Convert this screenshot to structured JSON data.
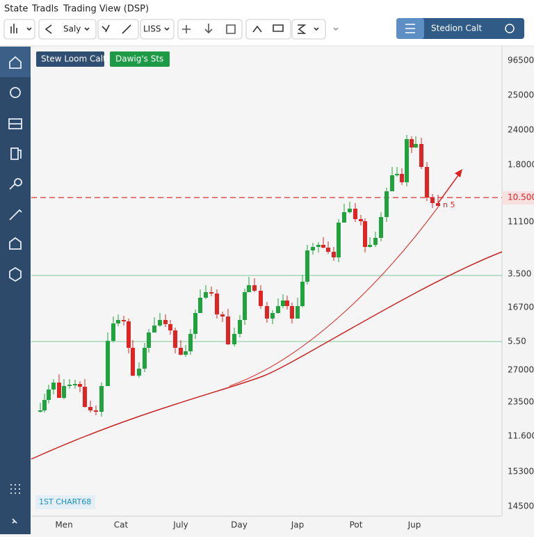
{
  "menu": [
    "State",
    "Tradls",
    "Trading View (DSP)"
  ],
  "toolbar": {
    "symbol": "Saly",
    "interval": "LISS",
    "button": "Stedion Calt"
  },
  "chart": {
    "tags": [
      "Stew Loom Calt",
      "Dawig's Sts"
    ],
    "price_labels": [
      "96500",
      "25000",
      "24000",
      "1.8000",
      "10.500",
      "11100",
      "3.500",
      "16700",
      "5.50",
      "27000",
      "23500",
      "11.600",
      "15300",
      "14500"
    ],
    "annotation": "n 5",
    "watermark": "1ST CHART68",
    "time_labels": [
      "Men",
      "Cat",
      "July",
      "Day",
      "Jap",
      "Pot",
      "Jup"
    ]
  }
}
